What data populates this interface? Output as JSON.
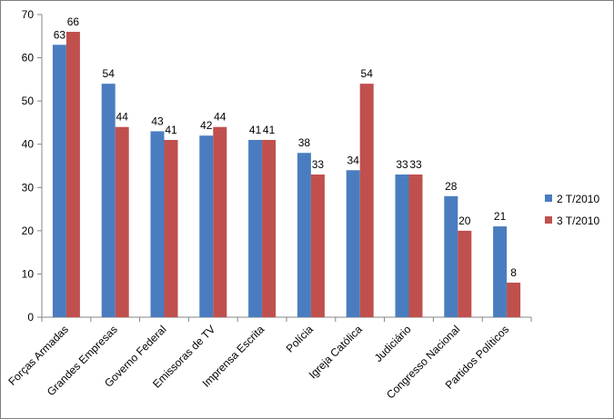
{
  "chart_data": {
    "type": "bar",
    "categories": [
      "Forças Armadas",
      "Grandes Empresas",
      "Governo Federal",
      "Emissoras de TV",
      "Imprensa Escrita",
      "Polícia",
      "Igreja Católica",
      "Judiciário",
      "Congresso Nacional",
      "Partidos Políticos"
    ],
    "series": [
      {
        "name": "2 T/2010",
        "color": "#4a7dbf",
        "values": [
          63,
          54,
          43,
          42,
          41,
          38,
          34,
          33,
          28,
          21
        ]
      },
      {
        "name": "3 T/2010",
        "color": "#c0504d",
        "values": [
          66,
          44,
          41,
          44,
          41,
          33,
          54,
          33,
          20,
          8
        ]
      }
    ],
    "ylim": [
      0,
      70
    ],
    "yticks": [
      0,
      10,
      20,
      30,
      40,
      50,
      60,
      70
    ],
    "grid": false,
    "legend_position": "right",
    "data_labels": true,
    "title": "",
    "xlabel": "",
    "ylabel": ""
  }
}
